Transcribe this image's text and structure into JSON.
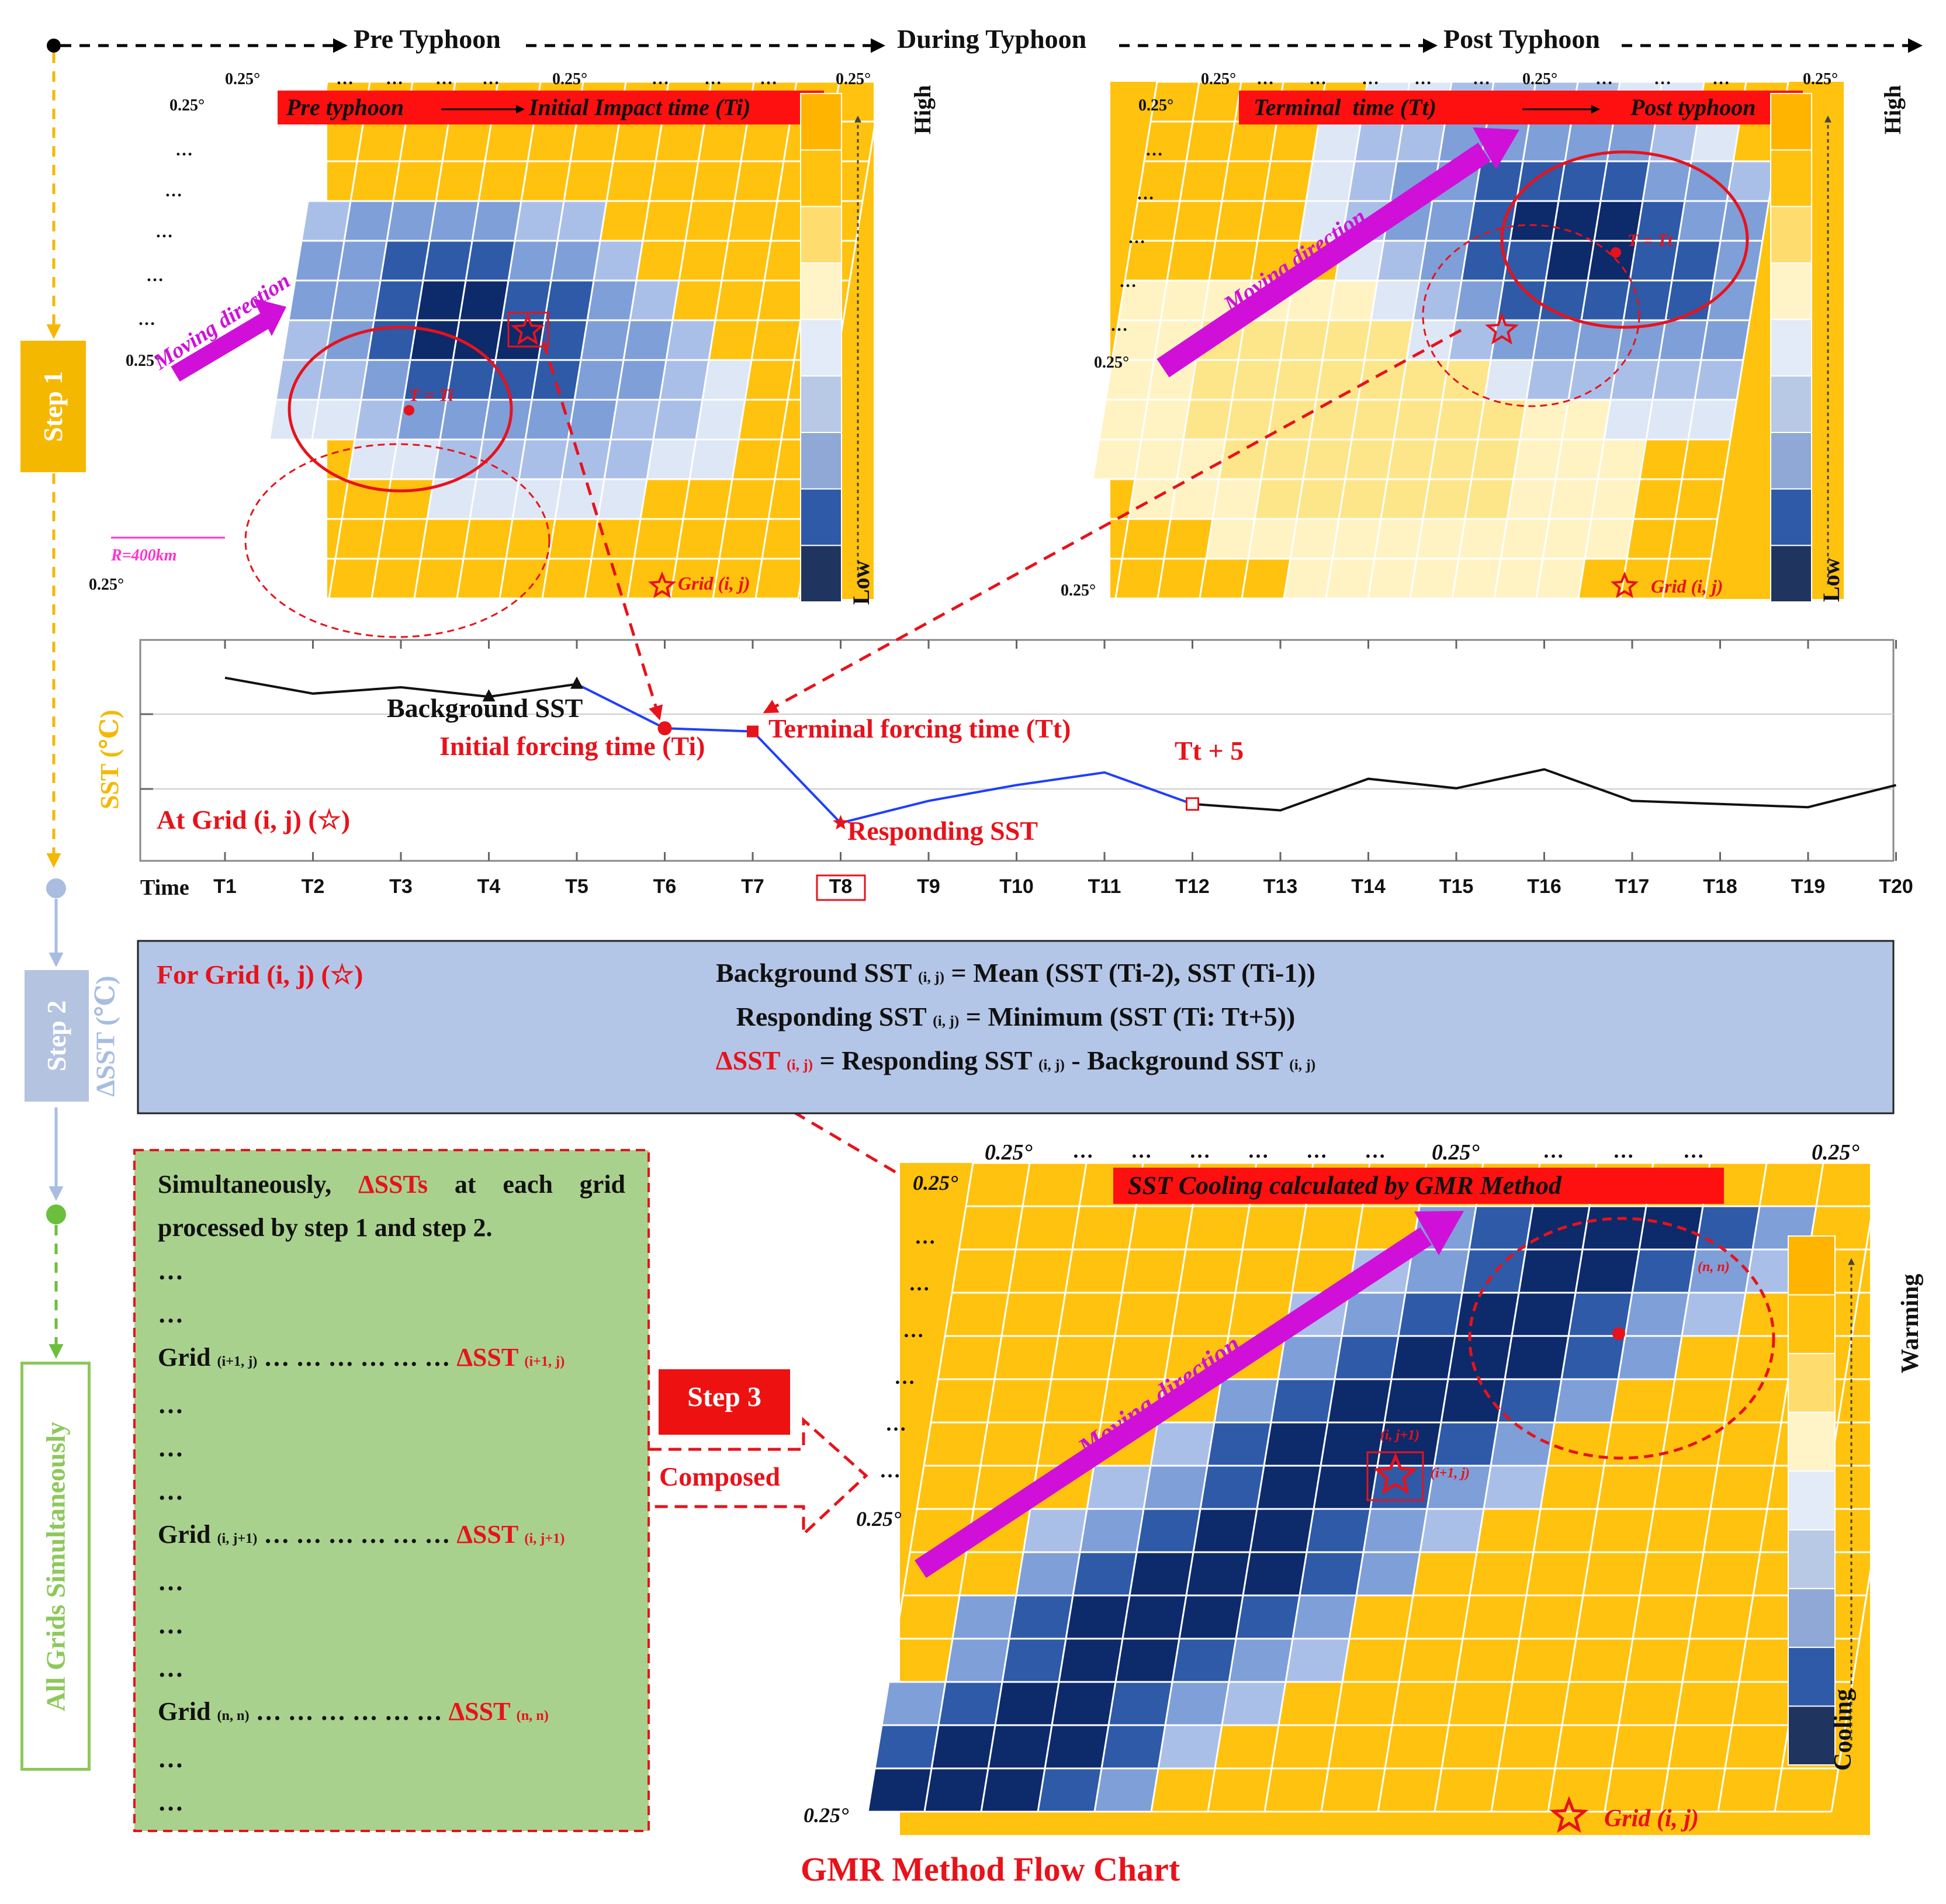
{
  "timeline": {
    "pre": "Pre Typhoon",
    "during": "During Typhoon",
    "post": "Post Typhoon"
  },
  "steps": {
    "step1": "Step 1",
    "step2": "Step 2",
    "step2_unit": "ΔSST (℃)",
    "all": "All Grids Simultaneously",
    "step3": "Step 3",
    "composed": "Composed"
  },
  "grid_labels": {
    "deg": "0.25°",
    "dots": "…",
    "grid_ij": "Grid (i, j)",
    "moving": "Moving direction",
    "radius": "R=400km",
    "t_ti": "T = Ti",
    "t_tt": "T = Tt",
    "cell_nn": "(n, n)",
    "cell_ij1": "(i, j+1)",
    "cell_i1j": "(i+1, j)"
  },
  "panel1": {
    "banner_left": "Pre typhoon",
    "banner_right": "Initial Impact time (Ti)",
    "high": "High",
    "low": "Low"
  },
  "panel2": {
    "banner_left": "Terminal  time (Tt)",
    "banner_right": "Post typhoon",
    "high": "High",
    "low": "Low"
  },
  "panel3": {
    "banner": "SST Cooling calculated by GMR Method",
    "warming": "Warming",
    "cooling": "Cooling"
  },
  "chart_data": {
    "type": "line",
    "title": "",
    "xlabel": "Time",
    "ylabel": "SST (℃)",
    "categories": [
      "T1",
      "T2",
      "T3",
      "T4",
      "T5",
      "T6",
      "T7",
      "T8",
      "T9",
      "T10",
      "T11",
      "T12",
      "T13",
      "T14",
      "T15",
      "T16",
      "T17",
      "T18",
      "T19",
      "T20"
    ],
    "highlighted_category": "T8",
    "series": [
      {
        "name": "Background SST",
        "color": "#111111",
        "values": [
          28.9,
          28.65,
          28.75,
          28.6,
          28.8,
          null,
          null,
          null,
          null,
          null,
          null,
          26.9,
          26.8,
          27.3,
          27.15,
          27.45,
          26.95,
          26.9,
          26.85,
          27.2
        ]
      },
      {
        "name": "Responding SST",
        "color": "#1f3fff",
        "values": [
          null,
          null,
          null,
          null,
          28.8,
          28.1,
          28.05,
          26.6,
          26.95,
          27.2,
          27.4,
          26.9,
          null,
          null,
          null,
          null,
          null,
          null,
          null,
          null
        ]
      }
    ],
    "ylim": [
      26.0,
      29.5
    ],
    "grid": true,
    "annotations": [
      {
        "text": "Background SST",
        "at": "T4"
      },
      {
        "text": "Initial forcing time (Ti)",
        "at": "T6"
      },
      {
        "text": "Terminal forcing time (Tt)",
        "at": "T7"
      },
      {
        "text": "Responding SST",
        "at": "T8"
      },
      {
        "text": "Tt + 5",
        "at": "T12"
      },
      {
        "text": "At Grid (i, j) (☆)",
        "at": "T1"
      }
    ]
  },
  "step2box": {
    "for_grid": "For Grid (i, j) (☆)",
    "line1_a": "Background SST",
    "line1_sub": "(i, j)",
    "line1_b": "= Mean (SST (Ti-2), SST (Ti-1))",
    "line2_a": "Responding SST",
    "line2_sub": "(i, j)",
    "line2_b": "= Minimum (SST (Ti: Tt+5))",
    "line3_a": "ΔSST",
    "line3_sub": "(i, j)",
    "line3_b": "= Responding SST",
    "line3_sub2": "(i, j)",
    "line3_c": "- Background SST",
    "line3_sub3": "(i, j)"
  },
  "greenbox": {
    "intro_a": "Simultaneously,",
    "intro_red": "ΔSSTs",
    "intro_b": "at each grid processed by step 1 and step 2.",
    "dots": "…",
    "rows": [
      {
        "grid": "Grid",
        "sub": "(i+1, j)",
        "leader": "… … … … … …",
        "delta": "ΔSST",
        "dsub": "(i+1, j)"
      },
      {
        "grid": "Grid",
        "sub": "(i, j+1)",
        "leader": "… … … … … …",
        "delta": "ΔSST",
        "dsub": "(i, j+1)"
      },
      {
        "grid": "Grid",
        "sub": "(n, n)",
        "leader": "… … … … … …",
        "delta": "ΔSST",
        "dsub": "(n, n)"
      }
    ]
  },
  "footer_title": "GMR Method Flow Chart",
  "colors": {
    "orange": "#ffc20e",
    "red": "#e8121b",
    "magenta": "#d010d8",
    "step1": "#f5b800",
    "step2": "#b3c3e0",
    "all": "#8dc85b",
    "green_fill": "#a9d18e",
    "blue_fill": "#b4c6e7"
  }
}
